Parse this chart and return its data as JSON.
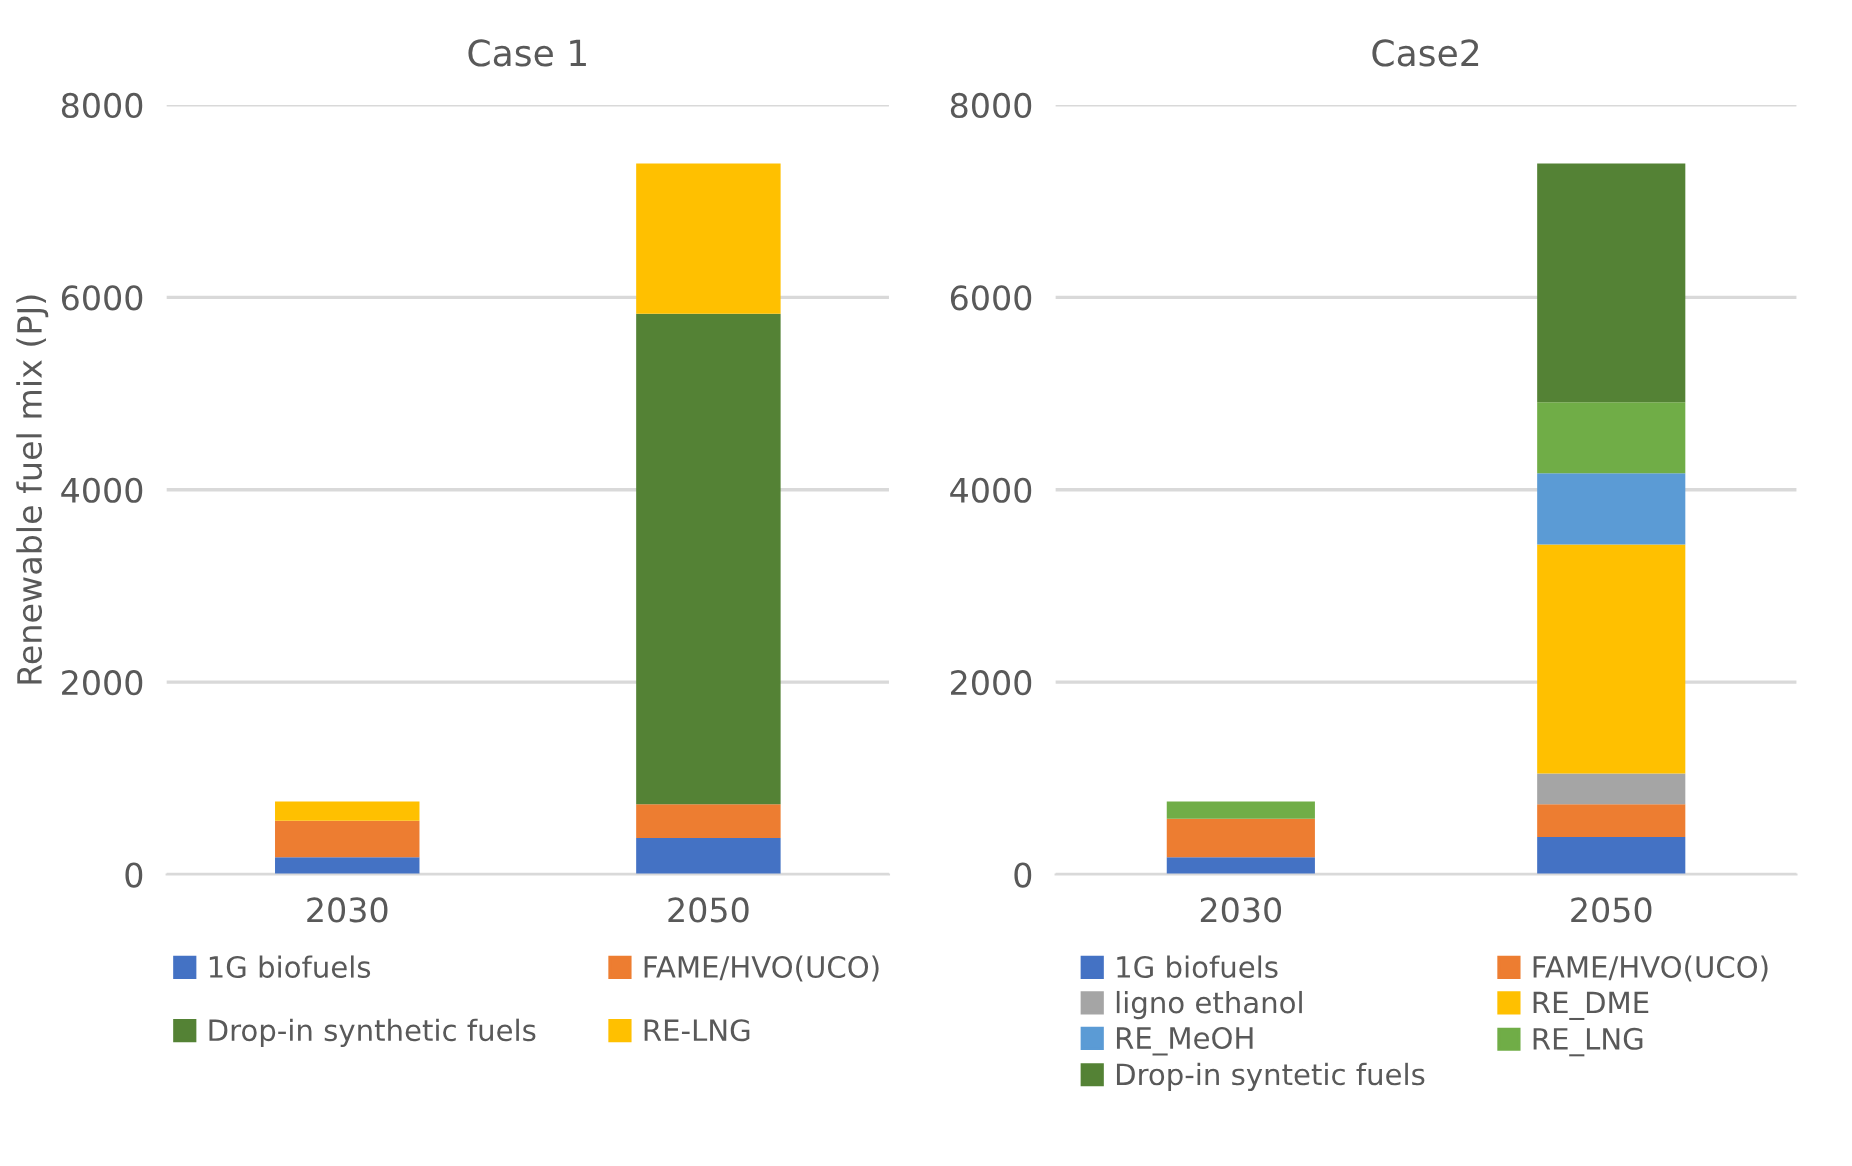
{
  "chart_data": [
    {
      "type": "bar",
      "title": "Case 1",
      "ylabel": "Renewable fuel mix (PJ)",
      "categories": [
        "2030",
        "2050"
      ],
      "stacked": true,
      "ylim": [
        0,
        8000
      ],
      "yticks": [
        0,
        2000,
        4000,
        6000,
        8000
      ],
      "grid": "y",
      "legend": "bottom",
      "series": [
        {
          "name": "1G biofuels",
          "color": "#4472c4",
          "values": [
            180,
            380
          ]
        },
        {
          "name": "FAME/HVO(UCO)",
          "color": "#ed7d31",
          "values": [
            380,
            350
          ]
        },
        {
          "name": "Drop-in synthetic fuels",
          "color": "#548235",
          "values": [
            null,
            5100
          ]
        },
        {
          "name": "RE-LNG",
          "color": "#ffc000",
          "values": [
            200,
            1560
          ]
        }
      ]
    },
    {
      "type": "bar",
      "title": "Case2",
      "categories": [
        "2030",
        "2050"
      ],
      "stacked": true,
      "ylim": [
        0,
        8000
      ],
      "yticks": [
        0,
        2000,
        4000,
        6000,
        8000
      ],
      "grid": "y",
      "legend": "bottom",
      "series": [
        {
          "name": "1G biofuels",
          "color": "#4472c4",
          "values": [
            180,
            390
          ]
        },
        {
          "name": "FAME/HVO(UCO)",
          "color": "#ed7d31",
          "values": [
            400,
            340
          ]
        },
        {
          "name": "ligno ethanol",
          "color": "#a5a5a5",
          "values": [
            null,
            320
          ]
        },
        {
          "name": "RE_DME",
          "color": "#ffc000",
          "values": [
            null,
            2380
          ]
        },
        {
          "name": "RE_MeOH",
          "color": "#5b9bd5",
          "values": [
            null,
            740
          ]
        },
        {
          "name": "RE_LNG",
          "color": "#70ad47",
          "values": [
            180,
            740
          ]
        },
        {
          "name": "Drop-in syntetic fuels",
          "color": "#548235",
          "values": [
            null,
            2480
          ]
        }
      ]
    }
  ]
}
